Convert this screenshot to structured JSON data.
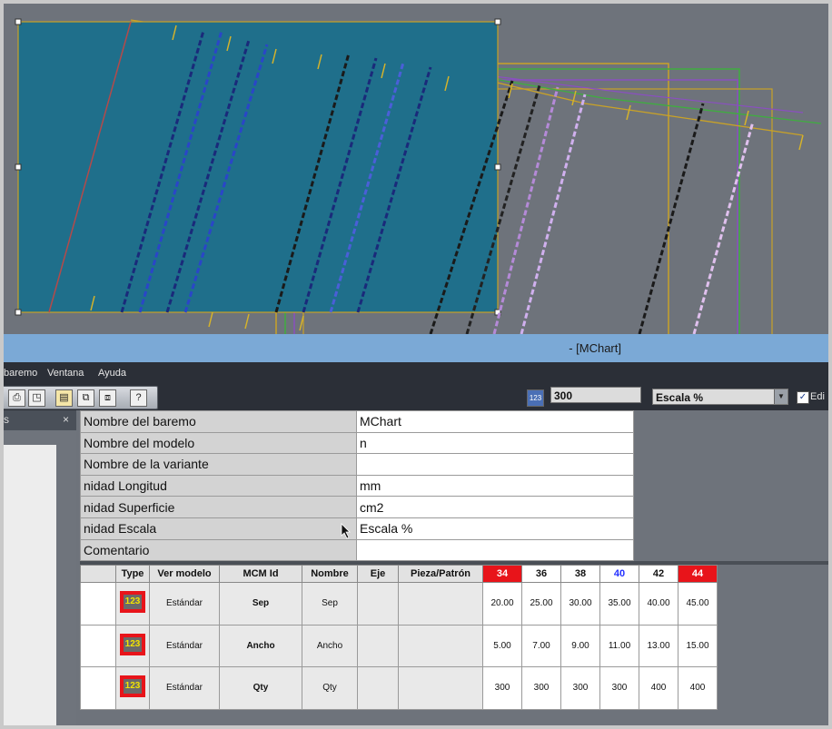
{
  "window": {
    "title": "- [MChart]"
  },
  "menu": {
    "items": [
      "baremo",
      "Ventana",
      "Ayuda"
    ]
  },
  "toolbar": {
    "numeric_icon": "123",
    "scale_value": "300",
    "scale_type": "Escala %",
    "edit_label": "Edi"
  },
  "left_panel": {
    "tab_label": "s",
    "close": "×"
  },
  "properties": [
    {
      "key": "Nombre del baremo",
      "value": "MChart"
    },
    {
      "key": "Nombre del modelo",
      "value": "n"
    },
    {
      "key": "Nombre de la variante",
      "value": ""
    },
    {
      "key": "nidad Longitud",
      "value": "mm"
    },
    {
      "key": "nidad Superficie",
      "value": "cm2"
    },
    {
      "key": "nidad Escala",
      "value": "Escala %"
    },
    {
      "key": "Comentario",
      "value": ""
    }
  ],
  "grid": {
    "headers": [
      "",
      "Type",
      "Ver modelo",
      "MCM Id",
      "Nombre",
      "Eje",
      "Pieza/Patrón",
      "34",
      "36",
      "38",
      "40",
      "42",
      "44"
    ],
    "type_icon": "123",
    "rows": [
      {
        "ver": "Estándar",
        "id": "Sep",
        "nombre": "Sep",
        "values": [
          "20.00",
          "25.00",
          "30.00",
          "35.00",
          "40.00",
          "45.00"
        ]
      },
      {
        "ver": "Estándar",
        "id": "Ancho",
        "nombre": "Ancho",
        "values": [
          "5.00",
          "7.00",
          "9.00",
          "11.00",
          "13.00",
          "15.00"
        ]
      },
      {
        "ver": "Estándar",
        "id": "Qty",
        "nombre": "Qty",
        "values": [
          "300",
          "300",
          "300",
          "300",
          "400",
          "400"
        ]
      }
    ]
  },
  "colors": {
    "selection_fill": "#1f6f8b",
    "title_bar": "#7ba9d6",
    "red_size": "#e8141a",
    "blue_size": "#2330ff"
  }
}
